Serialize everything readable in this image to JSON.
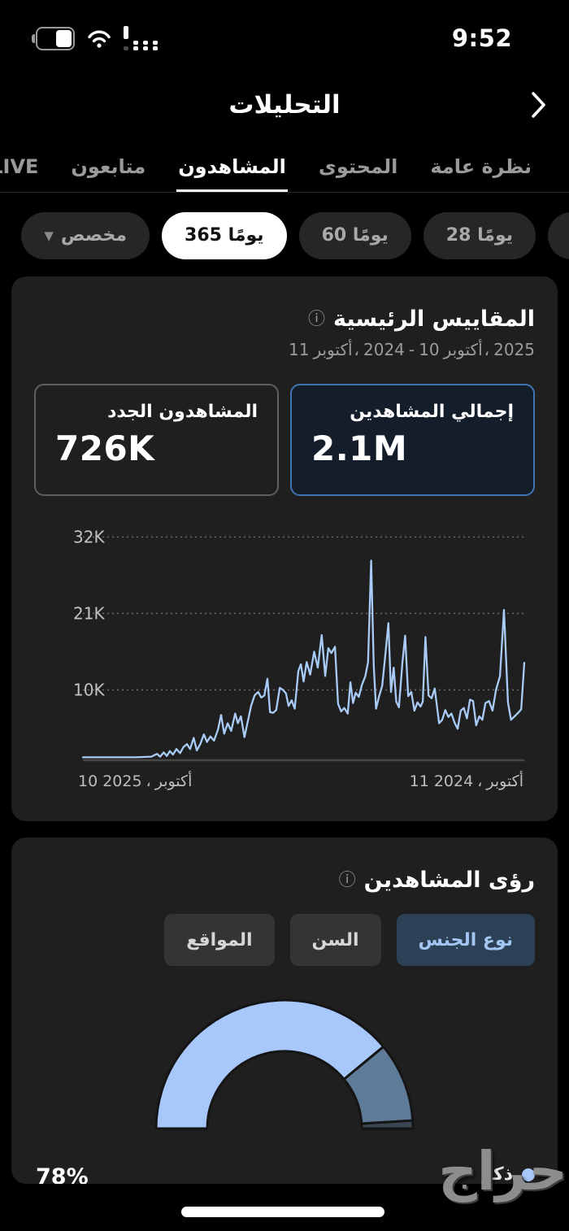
{
  "status_bar": {
    "time": "9:52",
    "battery_icon": "battery-half",
    "wifi_icon": "wifi",
    "signal_icon": "cellular-bars"
  },
  "header": {
    "title": "التحليلات",
    "back_icon": "chevron-right"
  },
  "tabs": [
    {
      "label": "نظرة عامة",
      "active": false
    },
    {
      "label": "المحتوى",
      "active": false
    },
    {
      "label": "المشاهدون",
      "active": true
    },
    {
      "label": "متابعون",
      "active": false
    },
    {
      "label": "LIVE",
      "active": false
    }
  ],
  "range_chips": [
    {
      "label": "",
      "partial": true,
      "selected": false,
      "caret": false
    },
    {
      "label": "28 يومًا",
      "partial": false,
      "selected": false,
      "caret": false
    },
    {
      "label": "60 يومًا",
      "partial": false,
      "selected": false,
      "caret": false
    },
    {
      "label": "365 يومًا",
      "partial": false,
      "selected": true,
      "caret": false
    },
    {
      "label": "مخصص",
      "partial": false,
      "selected": false,
      "caret": true
    }
  ],
  "key_metrics": {
    "title": "المقاييس الرئيسية",
    "info_icon": "ⓘ",
    "date_range_parts": [
      "11",
      "أكتوبر",
      "،",
      "2024",
      "-",
      "10",
      "أكتوبر",
      "،",
      "2025"
    ],
    "tiles": [
      {
        "label": "إجمالي المشاهدين",
        "value": "2.1M",
        "selected": true
      },
      {
        "label": "المشاهدون الجدد",
        "value": "726K",
        "selected": false
      }
    ]
  },
  "insights": {
    "title": "رؤى المشاهدين",
    "info_icon": "ⓘ",
    "buttons": [
      {
        "label": "نوع الجنس",
        "selected": true
      },
      {
        "label": "السن",
        "selected": false
      },
      {
        "label": "المواقع",
        "selected": false
      }
    ],
    "legend": {
      "value": "78%",
      "label": "ذكر",
      "dot_color": "#a8c7fa"
    }
  },
  "watermark": "حراج",
  "colors": {
    "background": "#000000",
    "card": "#1f1f1f",
    "chip": "#262626",
    "chip_selected": "#ffffff",
    "accent_blue_border": "#3f74b3",
    "line_blue": "#a9cbf7",
    "gauge_light_blue": "#a8c7fa",
    "gauge_slate": "#5e7b97",
    "gauge_dark": "#3a4651",
    "selected_button_bg": "#2c4156",
    "selected_button_text": "#a3c7f2"
  },
  "chart_data": [
    {
      "type": "line",
      "line_color": "#a9cbf7",
      "grid": "dotted horizontal gridlines, dark flat baseline axis",
      "ylim": [
        0,
        35
      ],
      "y_ticks": [
        {
          "label": "32K",
          "value": 32
        },
        {
          "label": "21K",
          "value": 21
        },
        {
          "label": "10K",
          "value": 10
        }
      ],
      "x_axis_note": "RTL time axis: right edge = 11 أكتوبر 2024 (start), left edge = 10 أكتوبر 2025 (end)",
      "x_label_left_parts": [
        "10 2025",
        "،",
        "أكتوبر"
      ],
      "x_label_right_parts": [
        "11 2024",
        "،",
        "أكتوبر"
      ],
      "series": [
        {
          "name": "إجمالي المشاهدين",
          "unit": "K",
          "points": [
            [
              0.0,
              0.3
            ],
            [
              0.04,
              0.3
            ],
            [
              0.08,
              0.3
            ],
            [
              0.12,
              0.3
            ],
            [
              0.155,
              0.4
            ],
            [
              0.168,
              0.8
            ],
            [
              0.175,
              0.4
            ],
            [
              0.183,
              1.0
            ],
            [
              0.19,
              0.5
            ],
            [
              0.197,
              1.2
            ],
            [
              0.204,
              0.7
            ],
            [
              0.212,
              1.5
            ],
            [
              0.22,
              0.9
            ],
            [
              0.228,
              1.8
            ],
            [
              0.236,
              2.2
            ],
            [
              0.243,
              1.5
            ],
            [
              0.251,
              3.1
            ],
            [
              0.258,
              1.3
            ],
            [
              0.266,
              2.2
            ],
            [
              0.274,
              3.6
            ],
            [
              0.281,
              2.5
            ],
            [
              0.289,
              3.3
            ],
            [
              0.297,
              2.7
            ],
            [
              0.306,
              4.3
            ],
            [
              0.313,
              6.4
            ],
            [
              0.32,
              3.7
            ],
            [
              0.328,
              5.2
            ],
            [
              0.336,
              4.1
            ],
            [
              0.345,
              6.6
            ],
            [
              0.351,
              5.2
            ],
            [
              0.358,
              6.2
            ],
            [
              0.366,
              3.2
            ],
            [
              0.374,
              5.6
            ],
            [
              0.381,
              7.7
            ],
            [
              0.389,
              9.2
            ],
            [
              0.397,
              9.7
            ],
            [
              0.404,
              8.9
            ],
            [
              0.411,
              9.2
            ],
            [
              0.418,
              11.6
            ],
            [
              0.424,
              6.8
            ],
            [
              0.431,
              6.7
            ],
            [
              0.438,
              7.1
            ],
            [
              0.446,
              10.3
            ],
            [
              0.453,
              10.0
            ],
            [
              0.46,
              9.5
            ],
            [
              0.466,
              7.7
            ],
            [
              0.473,
              8.5
            ],
            [
              0.48,
              7.3
            ],
            [
              0.488,
              12.7
            ],
            [
              0.494,
              13.7
            ],
            [
              0.5,
              11.2
            ],
            [
              0.507,
              14.0
            ],
            [
              0.515,
              12.2
            ],
            [
              0.524,
              15.5
            ],
            [
              0.532,
              13.2
            ],
            [
              0.541,
              17.9
            ],
            [
              0.549,
              12.0
            ],
            [
              0.556,
              16.0
            ],
            [
              0.563,
              15.3
            ],
            [
              0.571,
              16.2
            ],
            [
              0.578,
              8.0
            ],
            [
              0.585,
              6.9
            ],
            [
              0.592,
              7.4
            ],
            [
              0.6,
              6.6
            ],
            [
              0.606,
              11.1
            ],
            [
              0.612,
              8.1
            ],
            [
              0.618,
              9.6
            ],
            [
              0.625,
              9.0
            ],
            [
              0.632,
              10.7
            ],
            [
              0.64,
              12.0
            ],
            [
              0.646,
              14.0
            ],
            [
              0.653,
              28.6
            ],
            [
              0.659,
              13.5
            ],
            [
              0.664,
              7.3
            ],
            [
              0.671,
              9.1
            ],
            [
              0.678,
              10.6
            ],
            [
              0.685,
              15.0
            ],
            [
              0.692,
              19.6
            ],
            [
              0.698,
              9.7
            ],
            [
              0.704,
              13.2
            ],
            [
              0.71,
              8.3
            ],
            [
              0.716,
              7.5
            ],
            [
              0.724,
              14.0
            ],
            [
              0.73,
              17.8
            ],
            [
              0.737,
              9.1
            ],
            [
              0.744,
              9.7
            ],
            [
              0.751,
              7.0
            ],
            [
              0.758,
              8.2
            ],
            [
              0.765,
              7.6
            ],
            [
              0.77,
              8.3
            ],
            [
              0.776,
              17.6
            ],
            [
              0.783,
              9.2
            ],
            [
              0.79,
              8.8
            ],
            [
              0.797,
              10.2
            ],
            [
              0.807,
              5.2
            ],
            [
              0.814,
              5.7
            ],
            [
              0.821,
              7.1
            ],
            [
              0.828,
              6.1
            ],
            [
              0.835,
              6.6
            ],
            [
              0.842,
              5.3
            ],
            [
              0.849,
              4.4
            ],
            [
              0.856,
              7.0
            ],
            [
              0.863,
              7.4
            ],
            [
              0.87,
              5.9
            ],
            [
              0.877,
              8.6
            ],
            [
              0.884,
              8.4
            ],
            [
              0.891,
              4.9
            ],
            [
              0.898,
              6.2
            ],
            [
              0.905,
              5.7
            ],
            [
              0.912,
              8.1
            ],
            [
              0.92,
              8.4
            ],
            [
              0.928,
              7.0
            ],
            [
              0.936,
              10.0
            ],
            [
              0.945,
              12.0
            ],
            [
              0.954,
              21.5
            ],
            [
              0.963,
              8.2
            ],
            [
              0.97,
              5.7
            ],
            [
              0.978,
              6.2
            ],
            [
              0.986,
              6.7
            ],
            [
              0.993,
              7.2
            ],
            [
              1.0,
              13.9
            ]
          ]
        }
      ]
    },
    {
      "type": "pie",
      "variant": "half_donut",
      "unit": "%",
      "segments": [
        {
          "label": "ذكر",
          "value": 78,
          "color": "#a8c7fa"
        },
        {
          "label": "",
          "value": 20,
          "color": "#5e7b97"
        },
        {
          "label": "",
          "value": 2,
          "color": "#3a4651"
        }
      ]
    }
  ]
}
